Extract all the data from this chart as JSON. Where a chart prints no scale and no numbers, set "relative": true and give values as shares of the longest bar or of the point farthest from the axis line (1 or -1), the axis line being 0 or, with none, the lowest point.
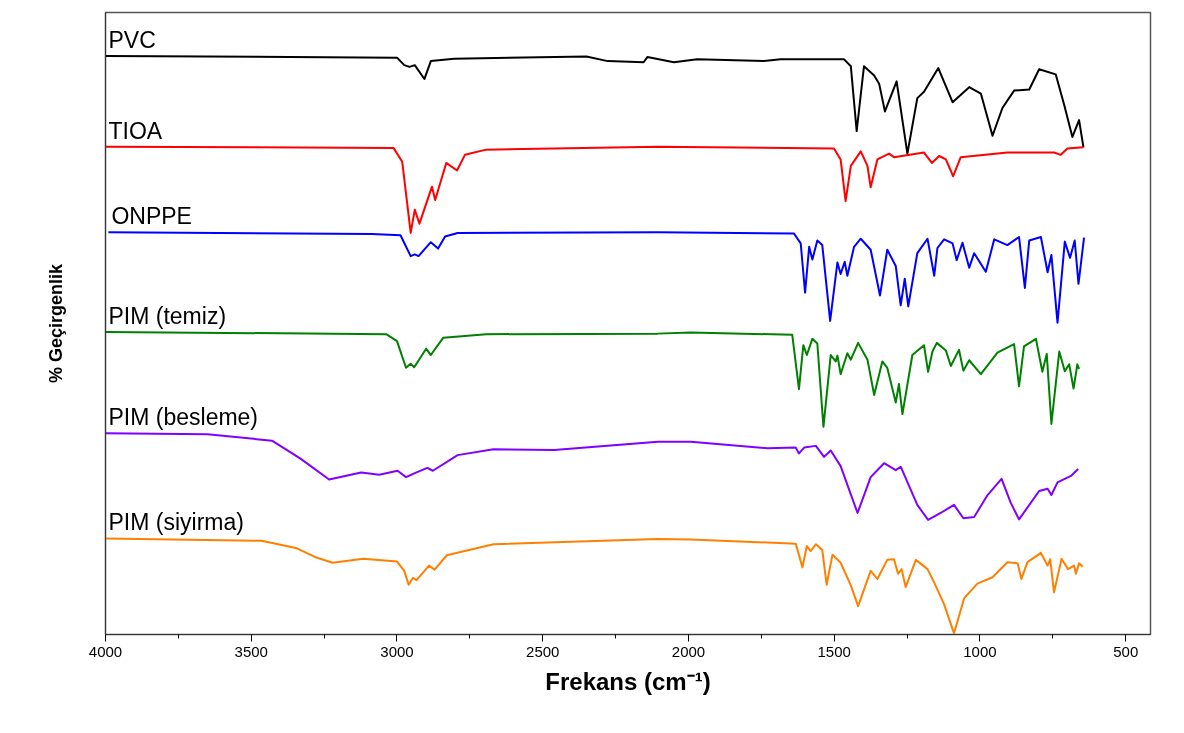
{
  "chart_data": {
    "type": "line",
    "relative": true,
    "xlabel": "Frekans (cm⁻¹)",
    "ylabel": "% Geçirgenlik",
    "xlim": [
      4000,
      415
    ],
    "xticks": [
      4000,
      {
        "value": 3750,
        "label": null
      },
      3500,
      {
        "value": 3250,
        "label": null
      },
      3000,
      {
        "value": 2750,
        "label": null
      },
      2500,
      {
        "value": 2250,
        "label": null
      },
      2000,
      {
        "value": 1750,
        "label": null
      },
      1500,
      {
        "value": 1250,
        "label": null
      },
      1000,
      {
        "value": 750,
        "label": null
      },
      500
    ],
    "series": [
      {
        "name": "PVC",
        "color": "#000000",
        "x": [
          4000,
          3000,
          2975,
          2957,
          2939,
          2906,
          2884,
          2804,
          2350,
          2277,
          2154,
          2141,
          2050,
          1970,
          1741,
          1684,
          1466,
          1443,
          1423,
          1398,
          1363,
          1346,
          1326,
          1286,
          1249,
          1215,
          1192,
          1143,
          1094,
          1037,
          997,
          957,
          923,
          883,
          831,
          797,
          740,
          711,
          683,
          660,
          645
        ],
        "values": [
          1.0,
          0.997,
          0.984,
          0.981,
          0.984,
          0.96,
          0.991,
          0.995,
          0.999,
          0.991,
          0.989,
          0.998,
          0.989,
          0.994,
          0.991,
          0.994,
          0.994,
          0.982,
          0.87,
          0.982,
          0.966,
          0.952,
          0.904,
          0.956,
          0.831,
          0.927,
          0.938,
          0.979,
          0.92,
          0.946,
          0.935,
          0.862,
          0.91,
          0.94,
          0.942,
          0.977,
          0.968,
          0.915,
          0.86,
          0.889,
          0.842
        ]
      },
      {
        "name": "TIOA",
        "color": "#ff0000",
        "x": [
          4000,
          3012,
          2982,
          2953,
          2939,
          2923,
          2880,
          2869,
          2831,
          2794,
          2767,
          2694,
          2105,
          1501,
          1478,
          1461,
          1443,
          1409,
          1386,
          1375,
          1352,
          1312,
          1295,
          1192,
          1165,
          1140,
          1117,
          1092,
          1066,
          906,
          746,
          723,
          700,
          645
        ],
        "values": [
          0.843,
          0.841,
          0.817,
          0.694,
          0.734,
          0.71,
          0.774,
          0.751,
          0.815,
          0.802,
          0.829,
          0.838,
          0.843,
          0.84,
          0.821,
          0.749,
          0.81,
          0.835,
          0.81,
          0.773,
          0.821,
          0.831,
          0.825,
          0.833,
          0.815,
          0.827,
          0.821,
          0.792,
          0.825,
          0.833,
          0.833,
          0.829,
          0.84,
          0.842
        ]
      },
      {
        "name": "ONPPE",
        "color": "#0000ff",
        "x": [
          3990,
          3086,
          2988,
          2953,
          2939,
          2926,
          2884,
          2859,
          2835,
          2792,
          2105,
          1638,
          1615,
          1600,
          1586,
          1575,
          1558,
          1541,
          1514,
          1489,
          1478,
          1464,
          1455,
          1432,
          1409,
          1375,
          1343,
          1318,
          1289,
          1272,
          1258,
          1246,
          1215,
          1180,
          1157,
          1146,
          1123,
          1094,
          1080,
          1060,
          1037,
          1020,
          980,
          951,
          906,
          866,
          846,
          831,
          791,
          768,
          755,
          734,
          709,
          691,
          675,
          662,
          643
        ],
        "values": [
          0.695,
          0.692,
          0.69,
          0.654,
          0.657,
          0.654,
          0.678,
          0.667,
          0.688,
          0.694,
          0.695,
          0.693,
          0.676,
          0.591,
          0.67,
          0.648,
          0.681,
          0.673,
          0.542,
          0.643,
          0.623,
          0.644,
          0.62,
          0.67,
          0.684,
          0.665,
          0.586,
          0.665,
          0.637,
          0.569,
          0.615,
          0.567,
          0.659,
          0.684,
          0.62,
          0.668,
          0.683,
          0.676,
          0.647,
          0.677,
          0.634,
          0.659,
          0.627,
          0.683,
          0.673,
          0.687,
          0.599,
          0.681,
          0.687,
          0.626,
          0.656,
          0.539,
          0.679,
          0.651,
          0.681,
          0.606,
          0.686
        ]
      },
      {
        "name": "PIM (temiz)",
        "color": "#008000",
        "x": [
          4000,
          3037,
          3000,
          2969,
          2953,
          2941,
          2900,
          2884,
          2841,
          2694,
          2105,
          1992,
          1644,
          1621,
          1606,
          1594,
          1575,
          1558,
          1537,
          1512,
          1495,
          1489,
          1478,
          1455,
          1443,
          1418,
          1386,
          1363,
          1335,
          1318,
          1289,
          1278,
          1266,
          1232,
          1192,
          1178,
          1163,
          1148,
          1117,
          1100,
          1072,
          1057,
          1037,
          997,
          940,
          883,
          866,
          849,
          808,
          786,
          771,
          755,
          728,
          709,
          694,
          679,
          666,
          660
        ],
        "values": [
          0.523,
          0.519,
          0.507,
          0.461,
          0.468,
          0.462,
          0.494,
          0.483,
          0.513,
          0.519,
          0.52,
          0.522,
          0.518,
          0.424,
          0.5,
          0.483,
          0.511,
          0.503,
          0.359,
          0.483,
          0.472,
          0.482,
          0.45,
          0.486,
          0.475,
          0.504,
          0.475,
          0.414,
          0.472,
          0.461,
          0.401,
          0.433,
          0.381,
          0.483,
          0.5,
          0.454,
          0.489,
          0.504,
          0.491,
          0.464,
          0.492,
          0.456,
          0.474,
          0.45,
          0.487,
          0.502,
          0.429,
          0.498,
          0.511,
          0.454,
          0.485,
          0.364,
          0.489,
          0.455,
          0.467,
          0.425,
          0.467,
          0.459
        ]
      },
      {
        "name": "PIM (besleme)",
        "color": "#8000ff",
        "x": [
          4000,
          3650,
          3429,
          3331,
          3233,
          3123,
          3061,
          2998,
          2969,
          2939,
          2896,
          2877,
          2792,
          2669,
          2461,
          2105,
          1992,
          1729,
          1632,
          1621,
          1603,
          1563,
          1535,
          1512,
          1478,
          1420,
          1375,
          1329,
          1289,
          1272,
          1215,
          1178,
          1135,
          1089,
          1057,
          1020,
          974,
          926,
          894,
          866,
          797,
          768,
          755,
          734,
          688,
          663
        ],
        "values": [
          0.348,
          0.346,
          0.335,
          0.304,
          0.268,
          0.28,
          0.276,
          0.283,
          0.272,
          0.279,
          0.288,
          0.283,
          0.31,
          0.32,
          0.319,
          0.333,
          0.333,
          0.322,
          0.323,
          0.313,
          0.323,
          0.326,
          0.307,
          0.318,
          0.291,
          0.21,
          0.272,
          0.296,
          0.284,
          0.29,
          0.224,
          0.198,
          0.21,
          0.224,
          0.201,
          0.203,
          0.241,
          0.269,
          0.227,
          0.199,
          0.248,
          0.252,
          0.241,
          0.263,
          0.274,
          0.286
        ]
      },
      {
        "name": "PIM (siyirma)",
        "color": "#ff8000",
        "x": [
          4000,
          3465,
          3343,
          3282,
          3221,
          3116,
          3000,
          2975,
          2960,
          2945,
          2933,
          2890,
          2871,
          2829,
          2669,
          2105,
          1992,
          1632,
          1609,
          1594,
          1581,
          1563,
          1541,
          1526,
          1506,
          1478,
          1443,
          1418,
          1375,
          1352,
          1318,
          1295,
          1281,
          1269,
          1255,
          1220,
          1180,
          1160,
          1123,
          1089,
          1054,
          1009,
          957,
          906,
          871,
          858,
          837,
          791,
          768,
          759,
          746,
          720,
          698,
          677,
          671,
          660,
          648
        ],
        "values": [
          0.166,
          0.162,
          0.149,
          0.134,
          0.124,
          0.131,
          0.126,
          0.11,
          0.086,
          0.098,
          0.094,
          0.119,
          0.112,
          0.137,
          0.156,
          0.165,
          0.164,
          0.157,
          0.116,
          0.153,
          0.144,
          0.156,
          0.146,
          0.086,
          0.138,
          0.124,
          0.085,
          0.049,
          0.11,
          0.096,
          0.129,
          0.13,
          0.105,
          0.113,
          0.082,
          0.129,
          0.113,
          0.093,
          0.052,
          0.002,
          0.063,
          0.088,
          0.099,
          0.125,
          0.123,
          0.096,
          0.125,
          0.141,
          0.119,
          0.13,
          0.073,
          0.131,
          0.113,
          0.119,
          0.105,
          0.123,
          0.117
        ]
      }
    ]
  }
}
